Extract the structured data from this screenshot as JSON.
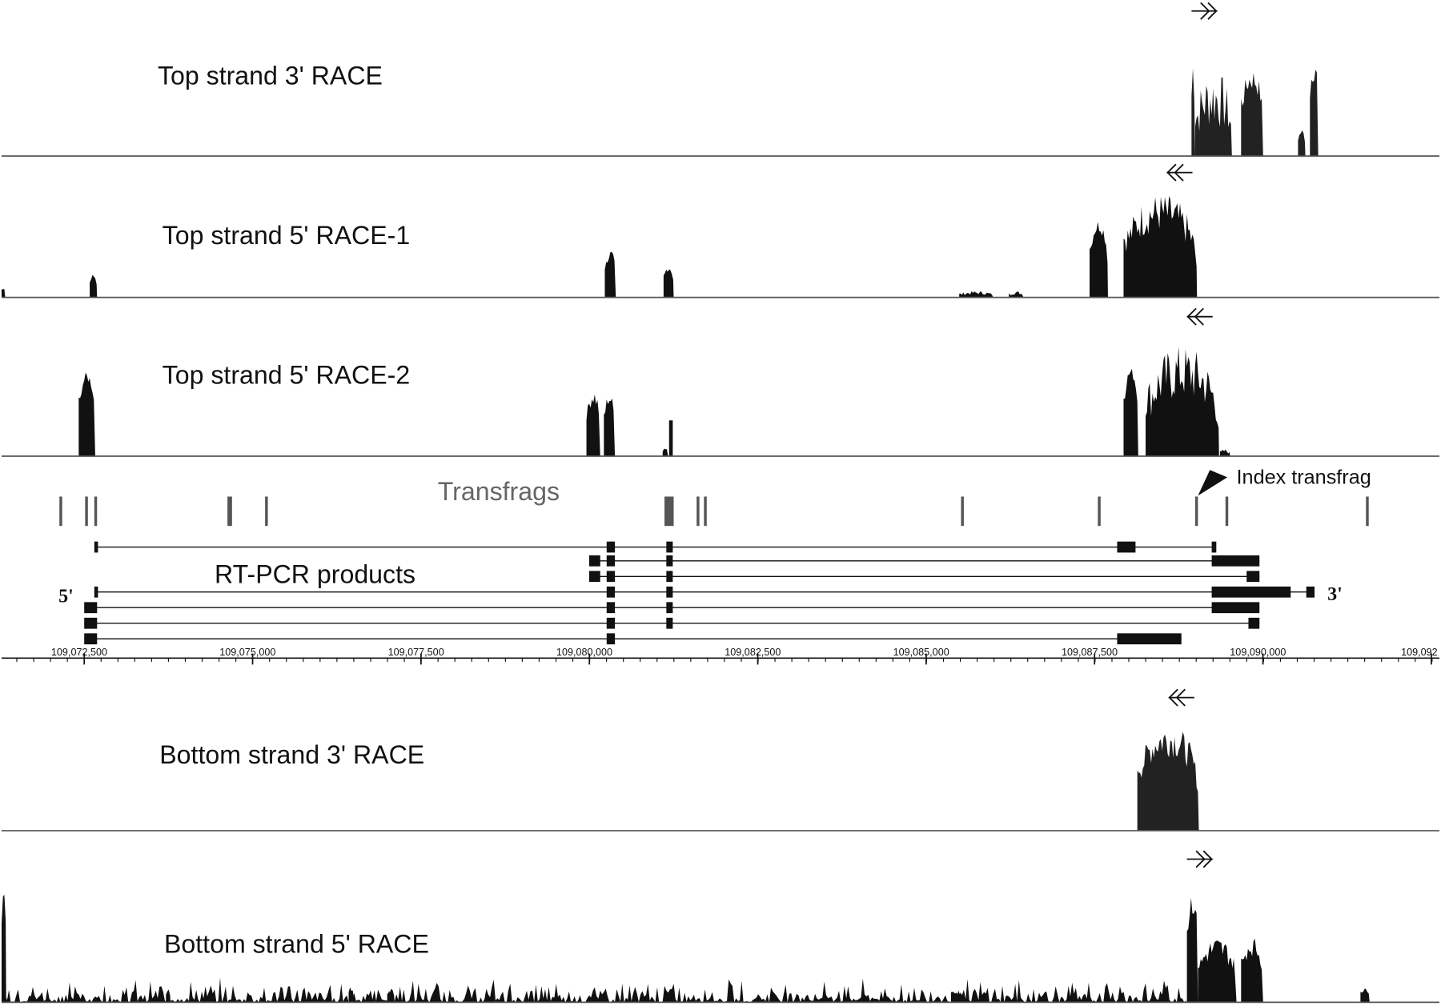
{
  "tracks": [
    {
      "label": "Top strand 3' RACE"
    },
    {
      "label": "Top strand 5' RACE-1"
    },
    {
      "label": "Top strand 5' RACE-2"
    },
    {
      "label": "Bottom strand 3' RACE"
    },
    {
      "label": "Bottom strand 5' RACE"
    }
  ],
  "transfrags": {
    "label": "Transfrags",
    "index_label": "Index transfrag"
  },
  "rt_pcr": {
    "label": "RT-PCR products",
    "five_prime": "5'",
    "three_prime": "3'"
  },
  "axis": {
    "ticks": [
      "109,072,500",
      "109,075,000",
      "109,077,500",
      "109,080,000",
      "109,082,500",
      "109,085,000",
      "109,087,500",
      "109,090,000",
      "109,092"
    ]
  }
}
